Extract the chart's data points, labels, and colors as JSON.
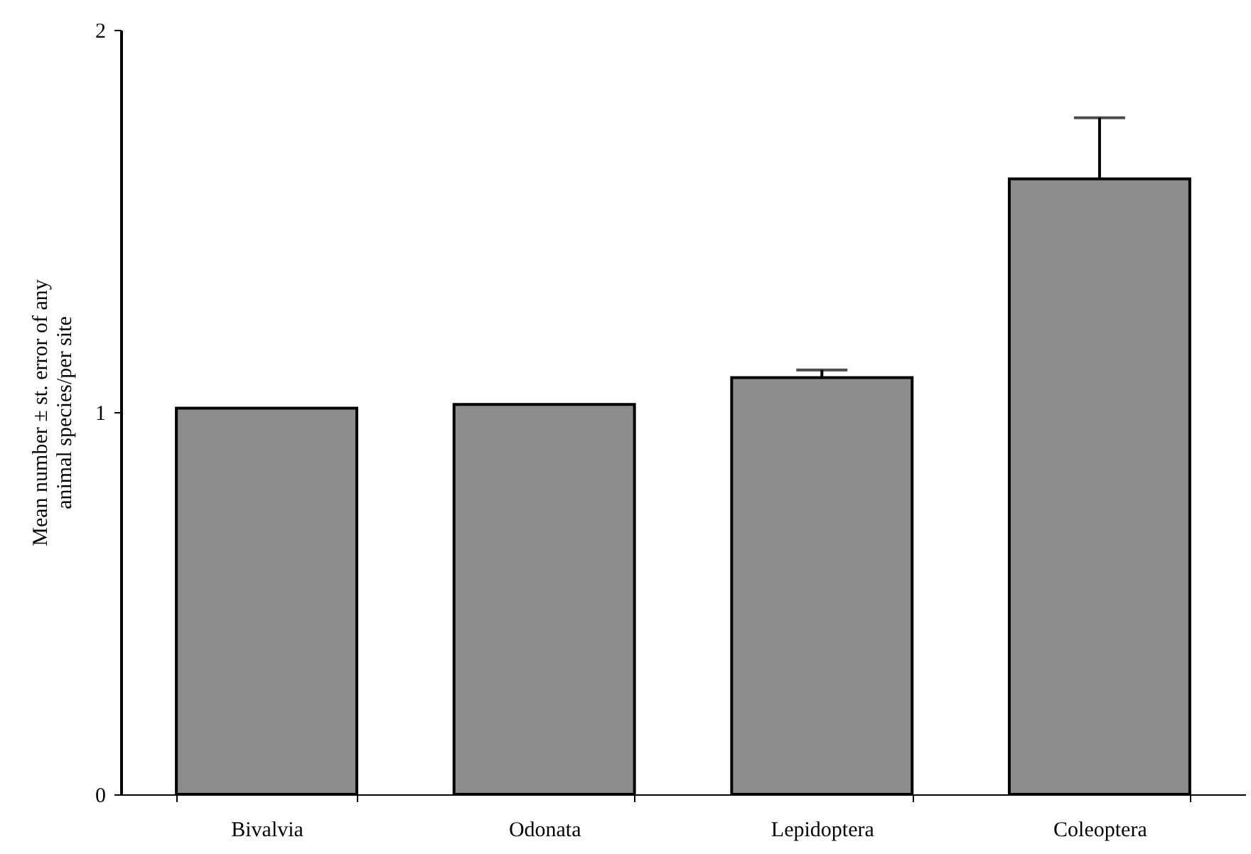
{
  "chart_data": {
    "type": "bar",
    "ylabel": "Mean number ± st. error of any\nanimal species/per site",
    "categories": [
      "Bivalvia",
      "Odonata",
      "Lepidoptera",
      "Coleoptera"
    ],
    "values": [
      1.01,
      1.02,
      1.09,
      1.61
    ],
    "errors": [
      null,
      null,
      [
        1.09,
        1.11
      ],
      [
        1.61,
        1.77
      ]
    ],
    "color": "#8c8c8c",
    "ylim": [
      0,
      2
    ],
    "yticks": [
      0,
      1,
      2
    ],
    "grid": false
  }
}
